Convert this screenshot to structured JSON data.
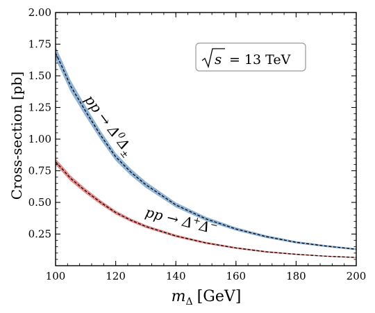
{
  "chart_data": {
    "type": "line",
    "xlabel_main": "m",
    "xlabel_sub": "Δ",
    "xlabel_unit": "[GeV]",
    "ylabel": "Cross-section [pb]",
    "xlim": [
      100,
      200
    ],
    "ylim": [
      0,
      2.0
    ],
    "x_ticks": [
      100,
      120,
      140,
      160,
      180,
      200
    ],
    "y_ticks": [
      0.25,
      0.5,
      0.75,
      1.0,
      1.25,
      1.5,
      1.75,
      2.0
    ],
    "x_tick_labels": [
      "100",
      "120",
      "140",
      "160",
      "180",
      "200"
    ],
    "y_tick_labels": [
      "0.25",
      "0.50",
      "0.75",
      "1.00",
      "1.25",
      "1.50",
      "1.75",
      "2.00"
    ],
    "legend_box": {
      "sqrt": "s",
      "rest": "= 13 TeV"
    },
    "series": [
      {
        "band_color": "#8fb4d6",
        "x": [
          100,
          102,
          105,
          110,
          115,
          120,
          125,
          130,
          140,
          150,
          160,
          170,
          180,
          190,
          200
        ],
        "central": [
          1.68,
          1.58,
          1.42,
          1.22,
          1.03,
          0.86,
          0.74,
          0.64,
          0.48,
          0.37,
          0.29,
          0.23,
          0.185,
          0.155,
          0.13
        ],
        "band_halfwidth": [
          0.05,
          0.048,
          0.045,
          0.04,
          0.035,
          0.03,
          0.027,
          0.024,
          0.019,
          0.016,
          0.013,
          0.011,
          0.009,
          0.008,
          0.007
        ],
        "label_parts": [
          "pp → Δ",
          "0",
          "Δ",
          "±"
        ]
      },
      {
        "band_color": "#e88a8a",
        "x": [
          100,
          102,
          105,
          110,
          115,
          120,
          125,
          130,
          140,
          150,
          160,
          170,
          180,
          190,
          200
        ],
        "central": [
          0.82,
          0.77,
          0.69,
          0.59,
          0.5,
          0.42,
          0.36,
          0.31,
          0.235,
          0.18,
          0.14,
          0.11,
          0.09,
          0.075,
          0.065
        ],
        "band_halfwidth": [
          0.025,
          0.024,
          0.022,
          0.019,
          0.017,
          0.015,
          0.013,
          0.012,
          0.01,
          0.008,
          0.007,
          0.006,
          0.005,
          0.004,
          0.004
        ],
        "label_parts": [
          "pp → Δ",
          "+",
          "Δ",
          "−"
        ]
      }
    ]
  }
}
